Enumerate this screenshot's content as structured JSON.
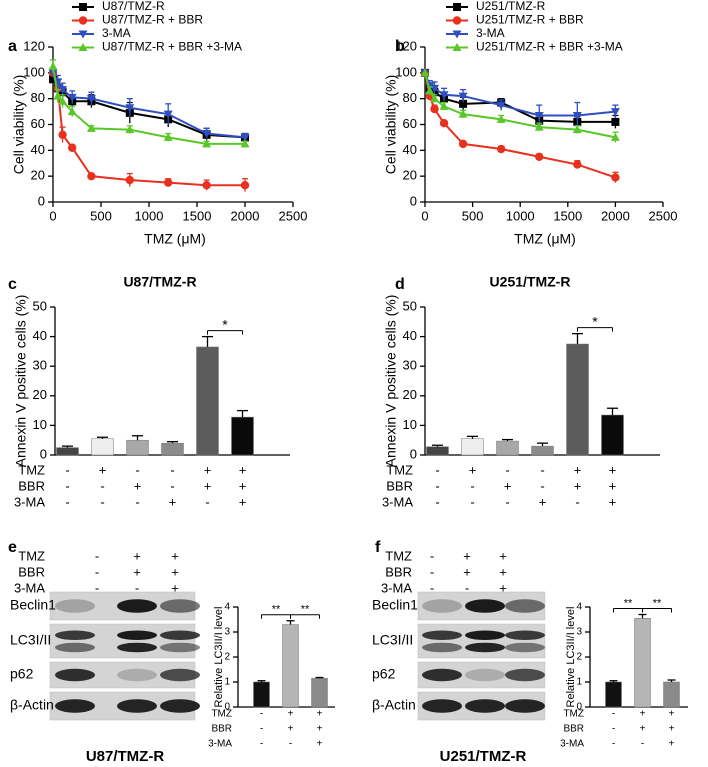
{
  "chart_data": [
    {
      "panel": "a",
      "type": "line",
      "xlabel": "TMZ (μM)",
      "ylabel": "Cell viability (%)",
      "x": [
        0,
        50,
        100,
        200,
        400,
        800,
        1200,
        1600,
        2000
      ],
      "xlim": [
        0,
        2500
      ],
      "xticks": [
        0,
        500,
        1000,
        1500,
        2000,
        2500
      ],
      "ylim": [
        0,
        120
      ],
      "yticks": [
        0,
        20,
        40,
        60,
        80,
        100,
        120
      ],
      "series": [
        {
          "name": "U87/TMZ-R",
          "color": "#000000",
          "marker": "square",
          "values": [
            95,
            88,
            85,
            78,
            78,
            69,
            64,
            52,
            50
          ],
          "errors": [
            0,
            3,
            4,
            5,
            5,
            8,
            6,
            5,
            3
          ]
        },
        {
          "name": "U87/TMZ-R + BBR",
          "color": "#e8301e",
          "marker": "circle",
          "values": [
            100,
            88,
            52,
            42,
            20,
            17,
            15,
            13,
            13
          ],
          "errors": [
            0,
            3,
            6,
            2,
            1,
            5,
            3,
            4,
            5
          ]
        },
        {
          "name": "3-MA",
          "color": "#2f4fc0",
          "marker": "triangle-down",
          "values": [
            100,
            93,
            87,
            81,
            80,
            73,
            68,
            53,
            50
          ],
          "errors": [
            0,
            5,
            5,
            5,
            5,
            7,
            8,
            4,
            3
          ]
        },
        {
          "name": "U87/TMZ-R + BBR +3-MA",
          "color": "#59c728",
          "marker": "triangle-up",
          "values": [
            105,
            82,
            78,
            70,
            57,
            56,
            50,
            45,
            45
          ],
          "errors": [
            5,
            5,
            5,
            4,
            2,
            3,
            3,
            2,
            2
          ]
        }
      ]
    },
    {
      "panel": "b",
      "type": "line",
      "xlabel": "TMZ (μM)",
      "ylabel": "Cell viability (%)",
      "x": [
        0,
        50,
        100,
        200,
        400,
        800,
        1200,
        1600,
        2000
      ],
      "xlim": [
        0,
        2500
      ],
      "xticks": [
        0,
        500,
        1000,
        1500,
        2000,
        2500
      ],
      "ylim": [
        0,
        120
      ],
      "yticks": [
        0,
        20,
        40,
        60,
        80,
        100,
        120
      ],
      "series": [
        {
          "name": "U251/TMZ-R",
          "color": "#000000",
          "marker": "square",
          "values": [
            100,
            88,
            85,
            80,
            76,
            77,
            63,
            62,
            62
          ],
          "errors": [
            0,
            3,
            3,
            4,
            5,
            3,
            4,
            4,
            5
          ]
        },
        {
          "name": "U251/TMZ-R + BBR",
          "color": "#e8301e",
          "marker": "circle",
          "values": [
            100,
            82,
            72,
            61,
            45,
            41,
            35,
            29,
            19
          ],
          "errors": [
            0,
            3,
            3,
            2,
            2,
            2,
            2,
            3,
            4
          ]
        },
        {
          "name": "3-MA",
          "color": "#2f4fc0",
          "marker": "triangle-down",
          "values": [
            100,
            90,
            88,
            83,
            82,
            75,
            67,
            67,
            70
          ],
          "errors": [
            0,
            4,
            5,
            5,
            5,
            4,
            8,
            10,
            5
          ]
        },
        {
          "name": "U251/TMZ-R + BBR +3-MA",
          "color": "#59c728",
          "marker": "triangle-up",
          "values": [
            100,
            86,
            80,
            74,
            68,
            64,
            58,
            56,
            50
          ],
          "errors": [
            0,
            3,
            3,
            3,
            3,
            3,
            3,
            3,
            4
          ]
        }
      ]
    },
    {
      "panel": "c",
      "type": "bar",
      "title": "U87/TMZ-R",
      "ylabel": "Annexin V positive cells (%)",
      "ylim": [
        0,
        50
      ],
      "yticks": [
        0,
        10,
        20,
        30,
        40,
        50
      ],
      "values": [
        2.5,
        5.5,
        5.0,
        4.0,
        36.5,
        12.8
      ],
      "errors": [
        0.5,
        0.5,
        1.5,
        0.5,
        3.5,
        2.2
      ],
      "colors": [
        "#444444",
        "#eeeeee",
        "#a8a8a8",
        "#8c8c8c",
        "#5c5c5c",
        "#0a0a0a"
      ],
      "conditions": [
        {
          "name": "TMZ",
          "values": [
            "-",
            "+",
            "-",
            "-",
            "+",
            "+"
          ]
        },
        {
          "name": "BBR",
          "values": [
            "-",
            "-",
            "+",
            "-",
            "+",
            "+"
          ]
        },
        {
          "name": "3-MA",
          "values": [
            "-",
            "-",
            "-",
            "+",
            "-",
            "+"
          ]
        }
      ],
      "annotations": [
        {
          "text": "*",
          "bars": [
            4,
            5
          ]
        }
      ]
    },
    {
      "panel": "d",
      "type": "bar",
      "title": "U251/TMZ-R",
      "ylabel": "Annexin V positive cells (%)",
      "ylim": [
        0,
        50
      ],
      "yticks": [
        0,
        10,
        20,
        30,
        40,
        50
      ],
      "values": [
        2.8,
        5.5,
        4.7,
        3.0,
        37.5,
        13.5
      ],
      "errors": [
        0.5,
        0.8,
        0.5,
        1.0,
        3.5,
        2.3
      ],
      "colors": [
        "#444444",
        "#eeeeee",
        "#a8a8a8",
        "#8c8c8c",
        "#5c5c5c",
        "#0a0a0a"
      ],
      "conditions": [
        {
          "name": "TMZ",
          "values": [
            "-",
            "+",
            "-",
            "-",
            "+",
            "+"
          ]
        },
        {
          "name": "BBR",
          "values": [
            "-",
            "-",
            "+",
            "-",
            "+",
            "+"
          ]
        },
        {
          "name": "3-MA",
          "values": [
            "-",
            "-",
            "-",
            "+",
            "-",
            "+"
          ]
        }
      ],
      "annotations": [
        {
          "text": "*",
          "bars": [
            4,
            5
          ]
        }
      ]
    },
    {
      "panel": "e",
      "type": "blot_bar",
      "caption": "U87/TMZ-R",
      "blot_conditions": [
        {
          "name": "TMZ",
          "values": [
            "-",
            "+",
            "+"
          ]
        },
        {
          "name": "BBR",
          "values": [
            "-",
            "+",
            "+"
          ]
        },
        {
          "name": "3-MA",
          "values": [
            "-",
            "-",
            "+"
          ]
        }
      ],
      "bands": [
        "Beclin1",
        "LC3I/II",
        "p62",
        "β-Actin"
      ],
      "ylabel": "Relative LC3II/I level",
      "ylim": [
        0,
        4
      ],
      "yticks": [
        0,
        1,
        2,
        3,
        4
      ],
      "values": [
        1.0,
        3.3,
        1.15
      ],
      "errors": [
        0.05,
        0.15,
        0.03
      ],
      "colors": [
        "#111111",
        "#b5b5b5",
        "#8a8a8a"
      ],
      "conditions": [
        {
          "name": "TMZ",
          "values": [
            "-",
            "+",
            "+"
          ]
        },
        {
          "name": "BBR",
          "values": [
            "-",
            "+",
            "+"
          ]
        },
        {
          "name": "3-MA",
          "values": [
            "-",
            "-",
            "+"
          ]
        }
      ],
      "annotations": [
        {
          "text": "**",
          "bars": [
            0,
            1
          ]
        },
        {
          "text": "**",
          "bars": [
            1,
            2
          ]
        }
      ]
    },
    {
      "panel": "f",
      "type": "blot_bar",
      "caption": "U251/TMZ-R",
      "blot_conditions": [
        {
          "name": "TMZ",
          "values": [
            "-",
            "+",
            "+"
          ]
        },
        {
          "name": "BBR",
          "values": [
            "-",
            "+",
            "+"
          ]
        },
        {
          "name": "3-MA",
          "values": [
            "-",
            "-",
            "+"
          ]
        }
      ],
      "bands": [
        "Beclin1",
        "LC3I/II",
        "p62",
        "β-Actin"
      ],
      "ylabel": "Relative LC3II/I level",
      "ylim": [
        0,
        4
      ],
      "yticks": [
        0,
        1,
        2,
        3,
        4
      ],
      "values": [
        1.0,
        3.55,
        1.0
      ],
      "errors": [
        0.05,
        0.15,
        0.08
      ],
      "colors": [
        "#111111",
        "#b5b5b5",
        "#8a8a8a"
      ],
      "conditions": [
        {
          "name": "TMZ",
          "values": [
            "-",
            "+",
            "+"
          ]
        },
        {
          "name": "BBR",
          "values": [
            "-",
            "+",
            "+"
          ]
        },
        {
          "name": "3-MA",
          "values": [
            "-",
            "-",
            "+"
          ]
        }
      ],
      "annotations": [
        {
          "text": "**",
          "bars": [
            0,
            1
          ]
        },
        {
          "text": "**",
          "bars": [
            1,
            2
          ]
        }
      ]
    }
  ]
}
